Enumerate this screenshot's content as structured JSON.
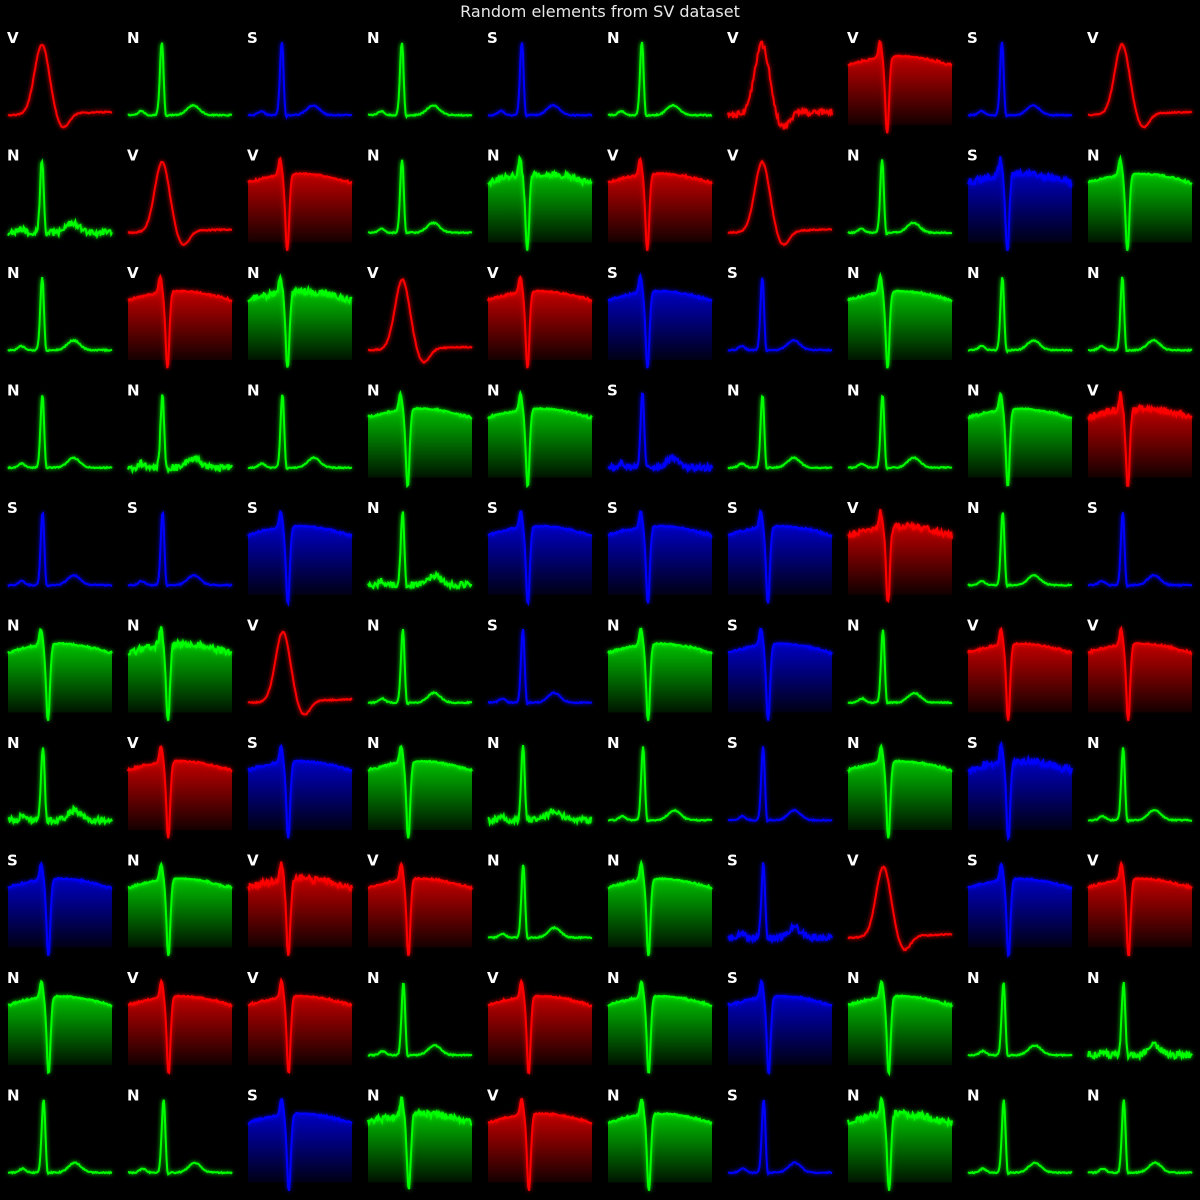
{
  "figure_title": "Random elements from SV dataset",
  "colors": {
    "N": "#00ff00",
    "S": "#0000ff",
    "V": "#ff0000",
    "background": "#000000"
  },
  "chart_data": {
    "type": "grid-of-line-plots",
    "title": "Random elements from SV dataset",
    "rows": 10,
    "cols": 10,
    "legend": "none",
    "grid": false,
    "axes": false,
    "labels": [
      [
        "V",
        "N",
        "S",
        "N",
        "S",
        "N",
        "V",
        "V",
        "S",
        "V"
      ],
      [
        "N",
        "V",
        "V",
        "N",
        "N",
        "V",
        "V",
        "N",
        "S",
        "N"
      ],
      [
        "N",
        "V",
        "N",
        "V",
        "V",
        "S",
        "S",
        "N",
        "N",
        "N"
      ],
      [
        "N",
        "N",
        "N",
        "N",
        "N",
        "S",
        "N",
        "N",
        "N",
        "V"
      ],
      [
        "S",
        "S",
        "S",
        "N",
        "S",
        "S",
        "S",
        "V",
        "N",
        "S"
      ],
      [
        "N",
        "N",
        "V",
        "N",
        "S",
        "N",
        "S",
        "N",
        "V",
        "V"
      ],
      [
        "N",
        "V",
        "S",
        "N",
        "N",
        "N",
        "S",
        "N",
        "S",
        "N"
      ],
      [
        "S",
        "N",
        "V",
        "V",
        "N",
        "N",
        "S",
        "V",
        "S",
        "V"
      ],
      [
        "N",
        "V",
        "V",
        "N",
        "V",
        "N",
        "S",
        "N",
        "N",
        "N"
      ],
      [
        "N",
        "N",
        "S",
        "N",
        "V",
        "N",
        "S",
        "N",
        "N",
        "N"
      ]
    ],
    "panel_styles_note": "each panel is one beat trace; some are drawn as filled areas",
    "filled": [
      [
        0,
        0,
        0,
        0,
        0,
        0,
        0,
        1,
        0,
        0
      ],
      [
        0,
        0,
        1,
        0,
        1,
        1,
        0,
        0,
        1,
        1
      ],
      [
        0,
        1,
        1,
        0,
        1,
        1,
        0,
        1,
        0,
        0
      ],
      [
        0,
        0,
        0,
        1,
        1,
        0,
        0,
        0,
        1,
        1
      ],
      [
        0,
        0,
        1,
        0,
        1,
        1,
        1,
        1,
        0,
        0
      ],
      [
        1,
        1,
        0,
        0,
        0,
        1,
        1,
        0,
        1,
        1
      ],
      [
        0,
        1,
        1,
        1,
        0,
        0,
        0,
        1,
        1,
        0
      ],
      [
        1,
        1,
        1,
        1,
        0,
        1,
        0,
        0,
        1,
        1
      ],
      [
        1,
        1,
        1,
        0,
        1,
        1,
        1,
        1,
        0,
        0
      ],
      [
        0,
        0,
        1,
        1,
        1,
        1,
        0,
        1,
        0,
        0
      ]
    ]
  }
}
